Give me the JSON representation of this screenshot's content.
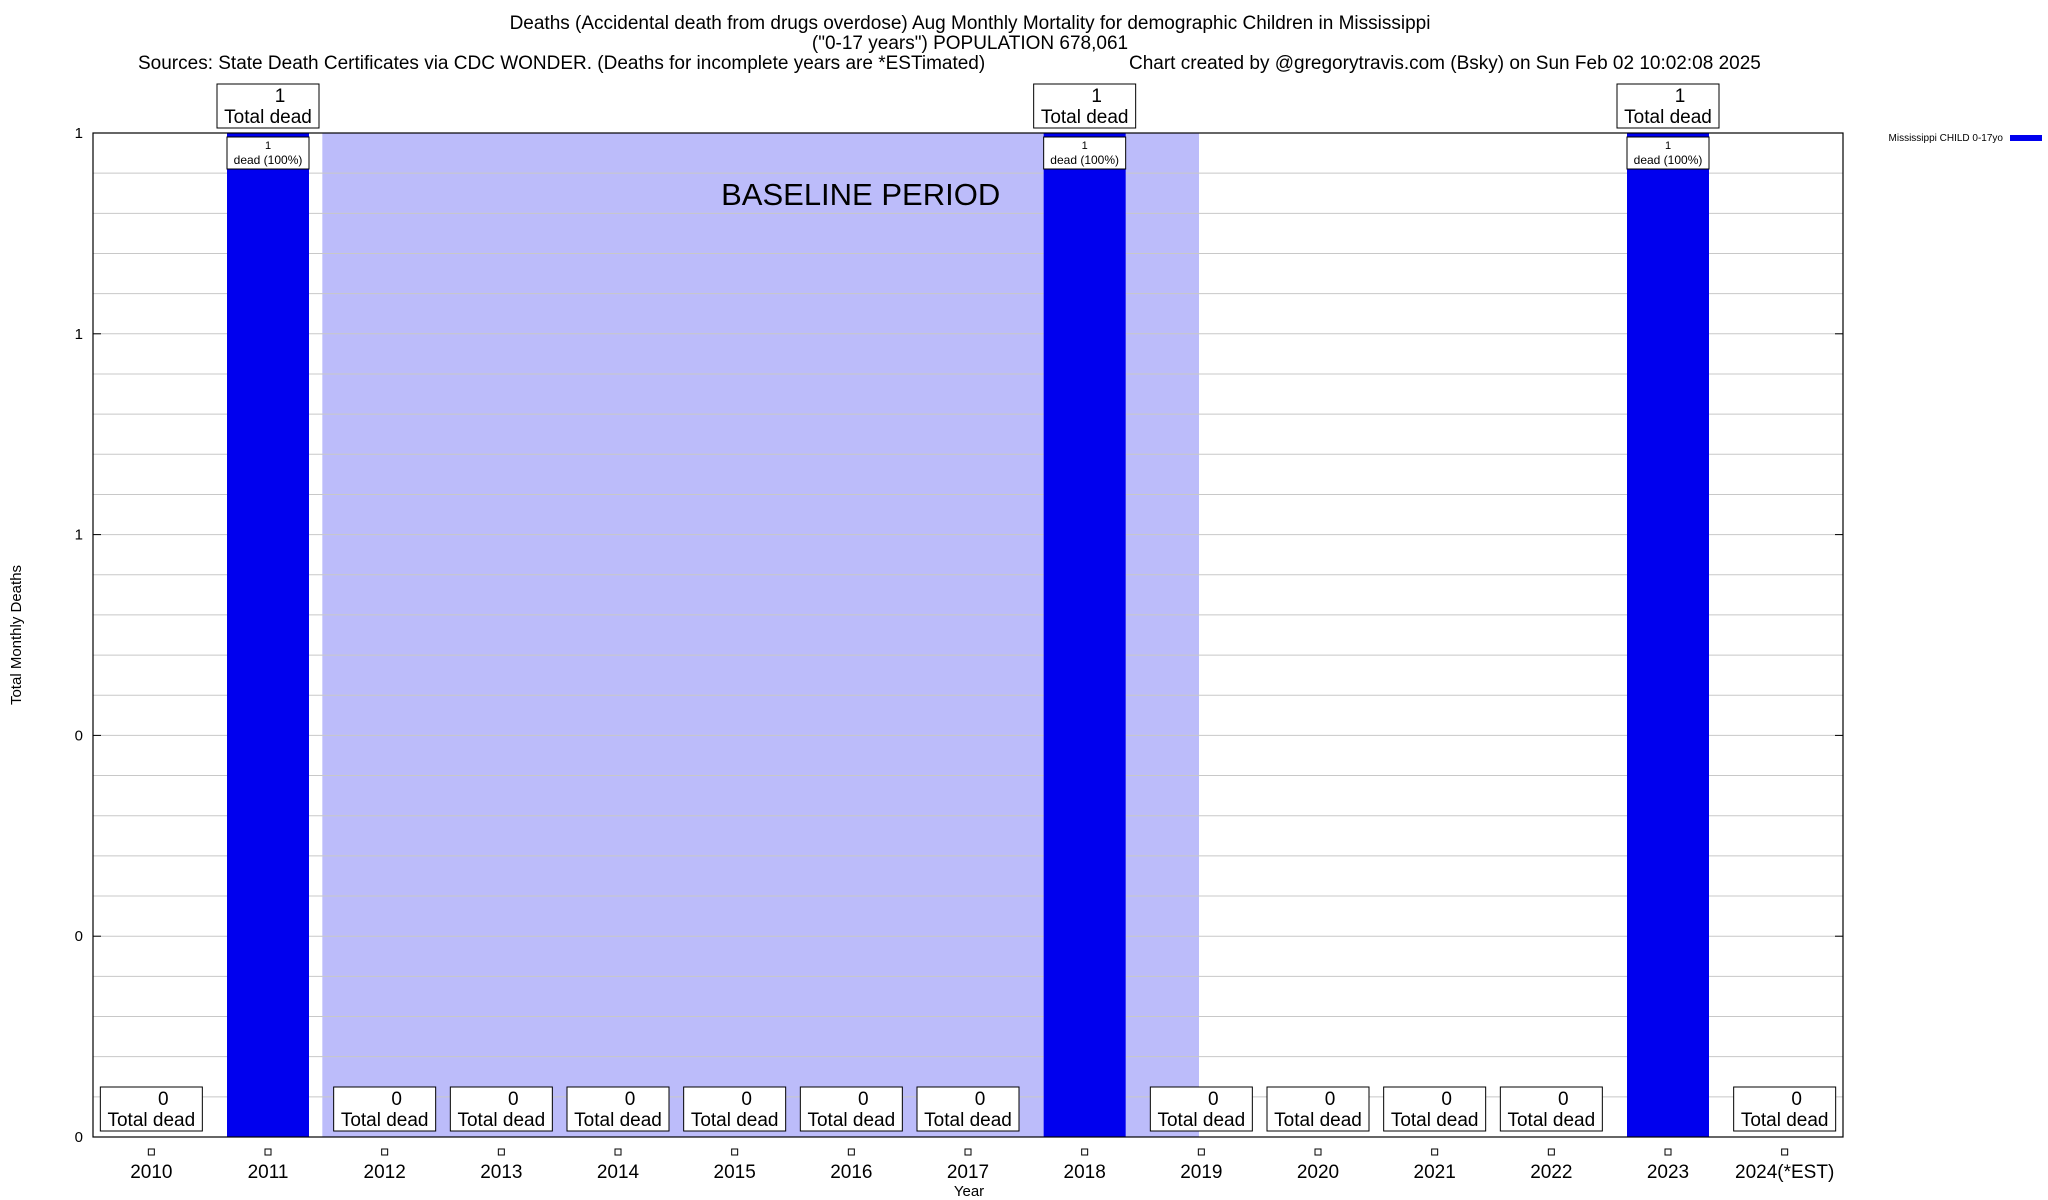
{
  "header": {
    "title_line1": "Deaths (Accidental death from drugs overdose) Aug Monthly Mortality for demographic Children in Mississippi",
    "title_line2": "(\"0-17 years\") POPULATION 678,061",
    "sources": "Sources: State Death Certificates via CDC WONDER. (Deaths for incomplete years are *ESTimated)",
    "credit": "Chart created by @gregorytravis.com (Bsky) on Sun Feb 02 10:02:08 2025"
  },
  "chart_data": {
    "type": "bar",
    "categories": [
      "2010",
      "2011",
      "2012",
      "2013",
      "2014",
      "2015",
      "2016",
      "2017",
      "2018",
      "2019",
      "2020",
      "2021",
      "2022",
      "2023",
      "2024(*EST)"
    ],
    "series": [
      {
        "name": "Mississippi CHILD 0-17yo",
        "values": [
          0,
          1,
          0,
          0,
          0,
          0,
          0,
          0,
          1,
          0,
          0,
          0,
          0,
          1,
          0
        ]
      }
    ],
    "xlabel": "Year",
    "ylabel": "Total Monthly Deaths",
    "ylim": [
      0,
      1
    ],
    "y_tick_labels": [
      "0",
      "0",
      "0",
      "1",
      "1",
      "1"
    ],
    "grid": true,
    "legend_position": "top-right",
    "bar_color": "#0000ee",
    "baseline_color": "#bcbcfa",
    "total_label_suffix": "Total dead",
    "bar_label_text": "dead (100%)",
    "annotation": {
      "text": "BASELINE PERIOD",
      "start_category": "2012",
      "end_category": "2019"
    }
  }
}
